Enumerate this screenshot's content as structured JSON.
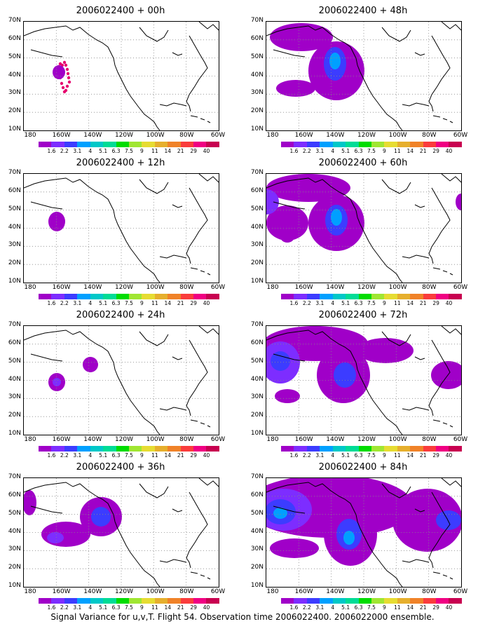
{
  "panels": [
    {
      "title": "2006022400 + 00h"
    },
    {
      "title": "2006022400 + 48h"
    },
    {
      "title": "2006022400 + 12h"
    },
    {
      "title": "2006022400 + 60h"
    },
    {
      "title": "2006022400 + 24h"
    },
    {
      "title": "2006022400 + 72h"
    },
    {
      "title": "2006022400 + 36h"
    },
    {
      "title": "2006022400 + 84h"
    }
  ],
  "lat_labels": [
    "70N",
    "60N",
    "50N",
    "40N",
    "30N",
    "20N",
    "10N"
  ],
  "lon_labels": [
    "180",
    "160W",
    "140W",
    "120W",
    "100W",
    "80W",
    "60W"
  ],
  "colorbar": {
    "colors": [
      "#a000c8",
      "#7d2dff",
      "#3c3cff",
      "#00a0ff",
      "#00c8c8",
      "#00dc96",
      "#00dc00",
      "#a0e632",
      "#e6dc32",
      "#e6af2d",
      "#f08228",
      "#fa3c3c",
      "#f00082",
      "#c80050"
    ],
    "labels": [
      "1.6",
      "2.2",
      "3.1",
      "4",
      "5.1",
      "6.3",
      "7.5",
      "9",
      "11",
      "14",
      "21",
      "29",
      "40"
    ]
  },
  "footer": "Signal Variance for u,v,T. Flight 54. Observation time 2006022400. 2006022000 ensemble."
}
